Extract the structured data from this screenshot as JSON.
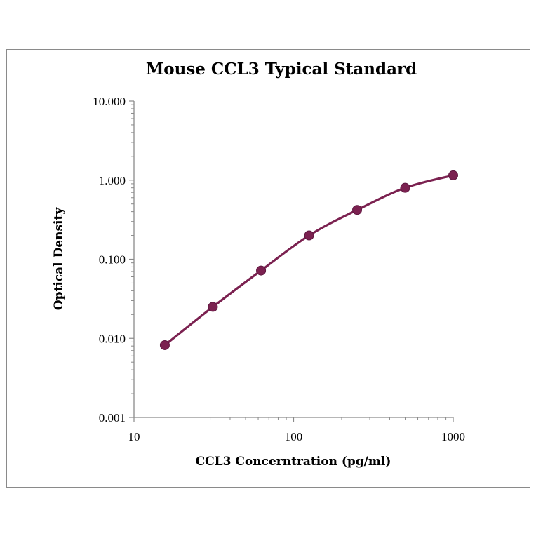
{
  "chart_data": {
    "type": "line",
    "title": "Mouse CCL3 Typical Standard",
    "xlabel": "CCL3 Concerntration (pg/ml)",
    "ylabel": "Optical Density",
    "x_scale": "log",
    "y_scale": "log",
    "xlim": [
      10,
      1000
    ],
    "ylim": [
      0.001,
      10
    ],
    "x_ticks": [
      "10",
      "100",
      "1000"
    ],
    "y_ticks": [
      "10.000",
      "1.000",
      "0.100",
      "0.010",
      "0.001"
    ],
    "grid": false,
    "legend": "none",
    "series": [
      {
        "color": "#7b2150",
        "x": [
          15.6,
          31.2,
          62.5,
          125,
          250,
          500,
          1000
        ],
        "y": [
          0.0082,
          0.025,
          0.072,
          0.2,
          0.42,
          0.8,
          1.15
        ]
      }
    ]
  }
}
